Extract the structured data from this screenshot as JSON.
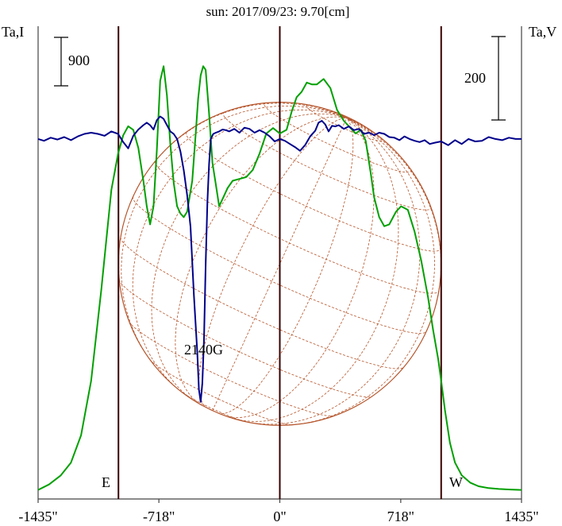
{
  "chart_data": {
    "type": "line",
    "title": "sun: 2017/09/23: 9.70[cm]",
    "left_axis_label": "Ta,I",
    "right_axis_label": "Ta,V",
    "left_scale_label": "900",
    "right_scale_label": "200",
    "limb_labels": {
      "east": "E",
      "west": "W"
    },
    "annotation": {
      "text": "2140G",
      "x": -450
    },
    "x_ticks": [
      {
        "value": -1435,
        "label": "-1435\""
      },
      {
        "value": -718,
        "label": "-718\""
      },
      {
        "value": 0,
        "label": "0\""
      },
      {
        "value": 718,
        "label": "718\""
      },
      {
        "value": 1435,
        "label": "1435\""
      }
    ],
    "xlim": [
      -1435,
      1435
    ],
    "vertical_lines": [
      -958,
      0,
      958
    ],
    "solar_disk_radius": 958,
    "grid": "heliographic",
    "colors": {
      "intensity": "#00a000",
      "polarization": "#00008b",
      "disk": "#b5542a",
      "frame": "#444444",
      "title": "#1a1a80",
      "marker": "#3a0000"
    },
    "series": [
      {
        "name": "I",
        "axis": "left",
        "ylim": [
          -50,
          2550
        ],
        "x": [
          -1435,
          -1370,
          -1300,
          -1240,
          -1180,
          -1120,
          -1060,
          -1000,
          -960,
          -930,
          -900,
          -870,
          -840,
          -810,
          -790,
          -770,
          -750,
          -730,
          -710,
          -690,
          -670,
          -650,
          -630,
          -610,
          -590,
          -570,
          -550,
          -520,
          -500,
          -485,
          -470,
          -455,
          -440,
          -420,
          -400,
          -380,
          -360,
          -340,
          -310,
          -280,
          -240,
          -200,
          -160,
          -120,
          -80,
          -40,
          0,
          40,
          70,
          100,
          130,
          160,
          190,
          220,
          260,
          300,
          340,
          380,
          420,
          450,
          480,
          510,
          540,
          560,
          590,
          620,
          650,
          690,
          720,
          760,
          800,
          840,
          880,
          910,
          940,
          958,
          980,
          1010,
          1040,
          1080,
          1130,
          1180,
          1240,
          1300,
          1370,
          1435
        ],
        "values": [
          0,
          30,
          80,
          150,
          300,
          600,
          1100,
          1650,
          1850,
          1950,
          2000,
          1980,
          1880,
          1700,
          1560,
          1460,
          1560,
          1870,
          2250,
          2330,
          2170,
          1900,
          1690,
          1560,
          1520,
          1500,
          1530,
          1700,
          1950,
          2150,
          2280,
          2330,
          2310,
          2070,
          1800,
          1680,
          1560,
          1600,
          1660,
          1700,
          1710,
          1720,
          1760,
          1850,
          1960,
          1990,
          1960,
          1980,
          2080,
          2160,
          2190,
          2240,
          2230,
          2230,
          2260,
          2210,
          2090,
          2030,
          1990,
          1960,
          1980,
          1920,
          1740,
          1610,
          1500,
          1450,
          1460,
          1530,
          1560,
          1540,
          1420,
          1260,
          1060,
          880,
          720,
          600,
          440,
          260,
          150,
          80,
          40,
          20,
          10,
          5,
          2,
          0
        ]
      },
      {
        "name": "V",
        "axis": "right",
        "ylim": [
          -575,
          180
        ],
        "x": [
          -1435,
          -1400,
          -1360,
          -1320,
          -1280,
          -1240,
          -1200,
          -1160,
          -1120,
          -1080,
          -1040,
          -1000,
          -960,
          -930,
          -900,
          -870,
          -840,
          -810,
          -790,
          -770,
          -750,
          -730,
          -710,
          -690,
          -670,
          -650,
          -630,
          -610,
          -590,
          -570,
          -550,
          -530,
          -510,
          -490,
          -480,
          -470,
          -460,
          -450,
          -440,
          -430,
          -420,
          -410,
          -395,
          -380,
          -360,
          -340,
          -320,
          -300,
          -270,
          -240,
          -210,
          -180,
          -150,
          -120,
          -90,
          -60,
          -30,
          0,
          30,
          60,
          90,
          120,
          150,
          180,
          210,
          230,
          250,
          270,
          290,
          310,
          330,
          350,
          380,
          410,
          440,
          470,
          500,
          530,
          560,
          590,
          620,
          650,
          680,
          710,
          740,
          770,
          800,
          830,
          860,
          890,
          920,
          958,
          1000,
          1040,
          1080,
          1120,
          1160,
          1200,
          1240,
          1280,
          1320,
          1360,
          1400,
          1435
        ],
        "values": [
          0,
          -3,
          2,
          -1,
          3,
          -2,
          4,
          8,
          10,
          8,
          5,
          12,
          8,
          -5,
          -15,
          5,
          15,
          22,
          26,
          22,
          15,
          30,
          36,
          32,
          22,
          12,
          8,
          0,
          -20,
          -50,
          -90,
          -140,
          -250,
          -340,
          -400,
          -420,
          -390,
          -320,
          -200,
          -100,
          -40,
          0,
          8,
          10,
          12,
          15,
          14,
          12,
          16,
          10,
          18,
          16,
          10,
          14,
          10,
          4,
          -4,
          0,
          -3,
          -8,
          -13,
          -19,
          -10,
          4,
          13,
          26,
          29,
          23,
          12,
          21,
          20,
          22,
          16,
          20,
          14,
          16,
          8,
          10,
          6,
          10,
          8,
          3,
          2,
          -2,
          4,
          0,
          -3,
          -5,
          -2,
          -8,
          -6,
          -4,
          -10,
          -2,
          -8,
          0,
          -4,
          -3,
          3,
          0,
          -2,
          2,
          0,
          0
        ]
      }
    ]
  }
}
